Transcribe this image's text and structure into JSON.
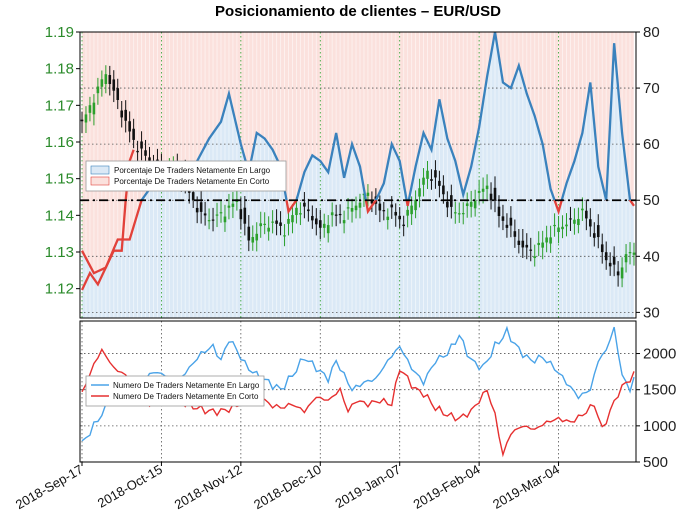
{
  "chart_data": {
    "title": "Posicionamiento de clientes – EUR/USD",
    "x_ticks": [
      "2018-Sep-17",
      "2018-Oct-15",
      "2018-Nov-12",
      "2018-Dec-10",
      "2019-Jan-07",
      "2019-Feb-04",
      "2019-Mar-04"
    ],
    "x_tick_index": [
      0,
      20,
      40,
      60,
      80,
      100,
      120
    ],
    "n_points": 140,
    "top_panel": {
      "price_axis": {
        "ticks": [
          "1.12",
          "1.13",
          "1.14",
          "1.15",
          "1.16",
          "1.17",
          "1.18",
          "1.19"
        ],
        "ylim": [
          1.112,
          1.19
        ]
      },
      "percent_axis": {
        "ticks": [
          "30",
          "40",
          "50",
          "60",
          "70",
          "80"
        ],
        "ylim": [
          29,
          80
        ]
      },
      "reference_line": 50,
      "legend": {
        "position": "left",
        "items": [
          "Porcentaje De Traders Netamente En Largo",
          "Porcentaje De Traders Netamente En Corto"
        ]
      },
      "series_colors": {
        "long": "#3a82bd",
        "short": "#e2413a",
        "long_fill": "#dbe9f6",
        "short_fill": "#fbe1dd",
        "candle_up": "#2ca02c",
        "candle_down": "#111111"
      },
      "price_keys": [
        [
          0,
          1.165
        ],
        [
          3,
          1.172
        ],
        [
          6,
          1.179
        ],
        [
          10,
          1.168
        ],
        [
          13,
          1.16
        ],
        [
          16,
          1.156
        ],
        [
          20,
          1.152
        ],
        [
          24,
          1.153
        ],
        [
          27,
          1.146
        ],
        [
          30,
          1.14
        ],
        [
          33,
          1.139
        ],
        [
          36,
          1.141
        ],
        [
          39,
          1.144
        ],
        [
          42,
          1.133
        ],
        [
          45,
          1.137
        ],
        [
          48,
          1.138
        ],
        [
          51,
          1.136
        ],
        [
          54,
          1.142
        ],
        [
          57,
          1.141
        ],
        [
          60,
          1.136
        ],
        [
          63,
          1.14
        ],
        [
          66,
          1.14
        ],
        [
          69,
          1.143
        ],
        [
          72,
          1.146
        ],
        [
          75,
          1.141
        ],
        [
          78,
          1.141
        ],
        [
          81,
          1.138
        ],
        [
          84,
          1.145
        ],
        [
          87,
          1.152
        ],
        [
          90,
          1.148
        ],
        [
          93,
          1.141
        ],
        [
          96,
          1.141
        ],
        [
          99,
          1.145
        ],
        [
          102,
          1.148
        ],
        [
          105,
          1.14
        ],
        [
          108,
          1.136
        ],
        [
          111,
          1.131
        ],
        [
          114,
          1.13
        ],
        [
          117,
          1.134
        ],
        [
          120,
          1.137
        ],
        [
          123,
          1.138
        ],
        [
          126,
          1.141
        ],
        [
          129,
          1.135
        ],
        [
          132,
          1.128
        ],
        [
          135,
          1.124
        ],
        [
          137,
          1.129
        ],
        [
          139,
          1.13
        ]
      ],
      "long_pct_keys": [
        [
          0,
          41
        ],
        [
          3,
          37
        ],
        [
          6,
          38
        ],
        [
          9,
          43
        ],
        [
          12,
          43
        ],
        [
          15,
          50
        ],
        [
          17,
          52
        ],
        [
          20,
          54
        ],
        [
          23,
          55
        ],
        [
          26,
          54
        ],
        [
          29,
          57
        ],
        [
          32,
          61
        ],
        [
          35,
          64
        ],
        [
          37,
          69
        ],
        [
          40,
          60
        ],
        [
          42,
          55
        ],
        [
          44,
          62
        ],
        [
          46,
          61
        ],
        [
          48,
          59
        ],
        [
          50,
          56
        ],
        [
          52,
          48
        ],
        [
          54,
          50
        ],
        [
          56,
          55
        ],
        [
          58,
          58
        ],
        [
          60,
          57
        ],
        [
          62,
          55
        ],
        [
          64,
          62
        ],
        [
          66,
          54
        ],
        [
          68,
          60
        ],
        [
          70,
          56
        ],
        [
          72,
          48
        ],
        [
          74,
          50
        ],
        [
          76,
          53
        ],
        [
          78,
          60
        ],
        [
          80,
          57
        ],
        [
          82,
          49
        ],
        [
          84,
          56
        ],
        [
          86,
          62
        ],
        [
          88,
          59
        ],
        [
          90,
          68
        ],
        [
          92,
          61
        ],
        [
          94,
          57
        ],
        [
          96,
          51
        ],
        [
          98,
          56
        ],
        [
          100,
          63
        ],
        [
          102,
          72
        ],
        [
          104,
          80
        ],
        [
          106,
          71
        ],
        [
          108,
          70
        ],
        [
          110,
          74
        ],
        [
          112,
          69
        ],
        [
          114,
          65
        ],
        [
          116,
          60
        ],
        [
          118,
          52
        ],
        [
          120,
          48
        ],
        [
          122,
          53
        ],
        [
          124,
          57
        ],
        [
          126,
          62
        ],
        [
          128,
          71
        ],
        [
          130,
          56
        ],
        [
          132,
          50
        ],
        [
          134,
          78
        ],
        [
          136,
          62
        ],
        [
          138,
          50
        ],
        [
          139,
          49
        ]
      ],
      "short_pct_keys": [
        [
          0,
          34
        ],
        [
          2,
          37
        ],
        [
          4,
          35
        ],
        [
          6,
          38
        ],
        [
          8,
          41
        ],
        [
          10,
          41
        ],
        [
          11,
          50
        ],
        [
          12,
          57
        ],
        [
          13,
          59
        ]
      ]
    },
    "bottom_panel": {
      "axis": {
        "ticks": [
          "500",
          "1000",
          "1500",
          "2000"
        ],
        "ylim": [
          500,
          2450
        ]
      },
      "legend": {
        "position": "left",
        "items": [
          "Numero De Traders Netamente En Largo",
          "Numero De Traders Netamente En Corto"
        ]
      },
      "series_colors": {
        "long": "#4aa3e8",
        "short": "#e63030"
      },
      "long_keys": [
        [
          0,
          750
        ],
        [
          3,
          1000
        ],
        [
          6,
          1250
        ],
        [
          9,
          1500
        ],
        [
          12,
          1450
        ],
        [
          15,
          1600
        ],
        [
          18,
          1750
        ],
        [
          21,
          1700
        ],
        [
          24,
          1600
        ],
        [
          27,
          1800
        ],
        [
          30,
          2000
        ],
        [
          33,
          2100
        ],
        [
          35,
          1900
        ],
        [
          37,
          2200
        ],
        [
          39,
          2050
        ],
        [
          41,
          1850
        ],
        [
          44,
          1700
        ],
        [
          47,
          1600
        ],
        [
          50,
          1500
        ],
        [
          53,
          1700
        ],
        [
          56,
          1950
        ],
        [
          59,
          1800
        ],
        [
          62,
          1650
        ],
        [
          64,
          1900
        ],
        [
          66,
          1700
        ],
        [
          68,
          1500
        ],
        [
          71,
          1600
        ],
        [
          74,
          1650
        ],
        [
          77,
          1900
        ],
        [
          80,
          2100
        ],
        [
          83,
          1800
        ],
        [
          86,
          1600
        ],
        [
          89,
          1900
        ],
        [
          92,
          2000
        ],
        [
          95,
          2250
        ],
        [
          98,
          1900
        ],
        [
          101,
          1800
        ],
        [
          104,
          2100
        ],
        [
          107,
          2300
        ],
        [
          110,
          2050
        ],
        [
          113,
          1900
        ],
        [
          116,
          1950
        ],
        [
          119,
          1800
        ],
        [
          122,
          1600
        ],
        [
          125,
          1400
        ],
        [
          128,
          1500
        ],
        [
          130,
          1900
        ],
        [
          132,
          2050
        ],
        [
          134,
          2350
        ],
        [
          136,
          1700
        ],
        [
          138,
          1500
        ],
        [
          139,
          1650
        ]
      ],
      "short_keys": [
        [
          0,
          1450
        ],
        [
          3,
          1850
        ],
        [
          5,
          2050
        ],
        [
          8,
          1800
        ],
        [
          11,
          1700
        ],
        [
          14,
          1500
        ],
        [
          17,
          1300
        ],
        [
          20,
          1350
        ],
        [
          23,
          1400
        ],
        [
          26,
          1300
        ],
        [
          29,
          1250
        ],
        [
          32,
          1200
        ],
        [
          35,
          1200
        ],
        [
          38,
          1250
        ],
        [
          41,
          1350
        ],
        [
          44,
          1450
        ],
        [
          47,
          1300
        ],
        [
          50,
          1250
        ],
        [
          53,
          1300
        ],
        [
          56,
          1200
        ],
        [
          59,
          1400
        ],
        [
          62,
          1350
        ],
        [
          65,
          1500
        ],
        [
          67,
          1200
        ],
        [
          69,
          1350
        ],
        [
          72,
          1300
        ],
        [
          75,
          1350
        ],
        [
          78,
          1300
        ],
        [
          80,
          1800
        ],
        [
          82,
          1650
        ],
        [
          84,
          1500
        ],
        [
          86,
          1450
        ],
        [
          89,
          1250
        ],
        [
          92,
          1150
        ],
        [
          95,
          1100
        ],
        [
          98,
          1200
        ],
        [
          100,
          1350
        ],
        [
          102,
          1500
        ],
        [
          104,
          1150
        ],
        [
          106,
          600
        ],
        [
          108,
          900
        ],
        [
          111,
          1000
        ],
        [
          114,
          950
        ],
        [
          117,
          1050
        ],
        [
          120,
          1100
        ],
        [
          123,
          1050
        ],
        [
          126,
          1150
        ],
        [
          129,
          1300
        ],
        [
          131,
          950
        ],
        [
          133,
          1200
        ],
        [
          135,
          1450
        ],
        [
          137,
          1600
        ],
        [
          139,
          1700
        ]
      ]
    }
  }
}
